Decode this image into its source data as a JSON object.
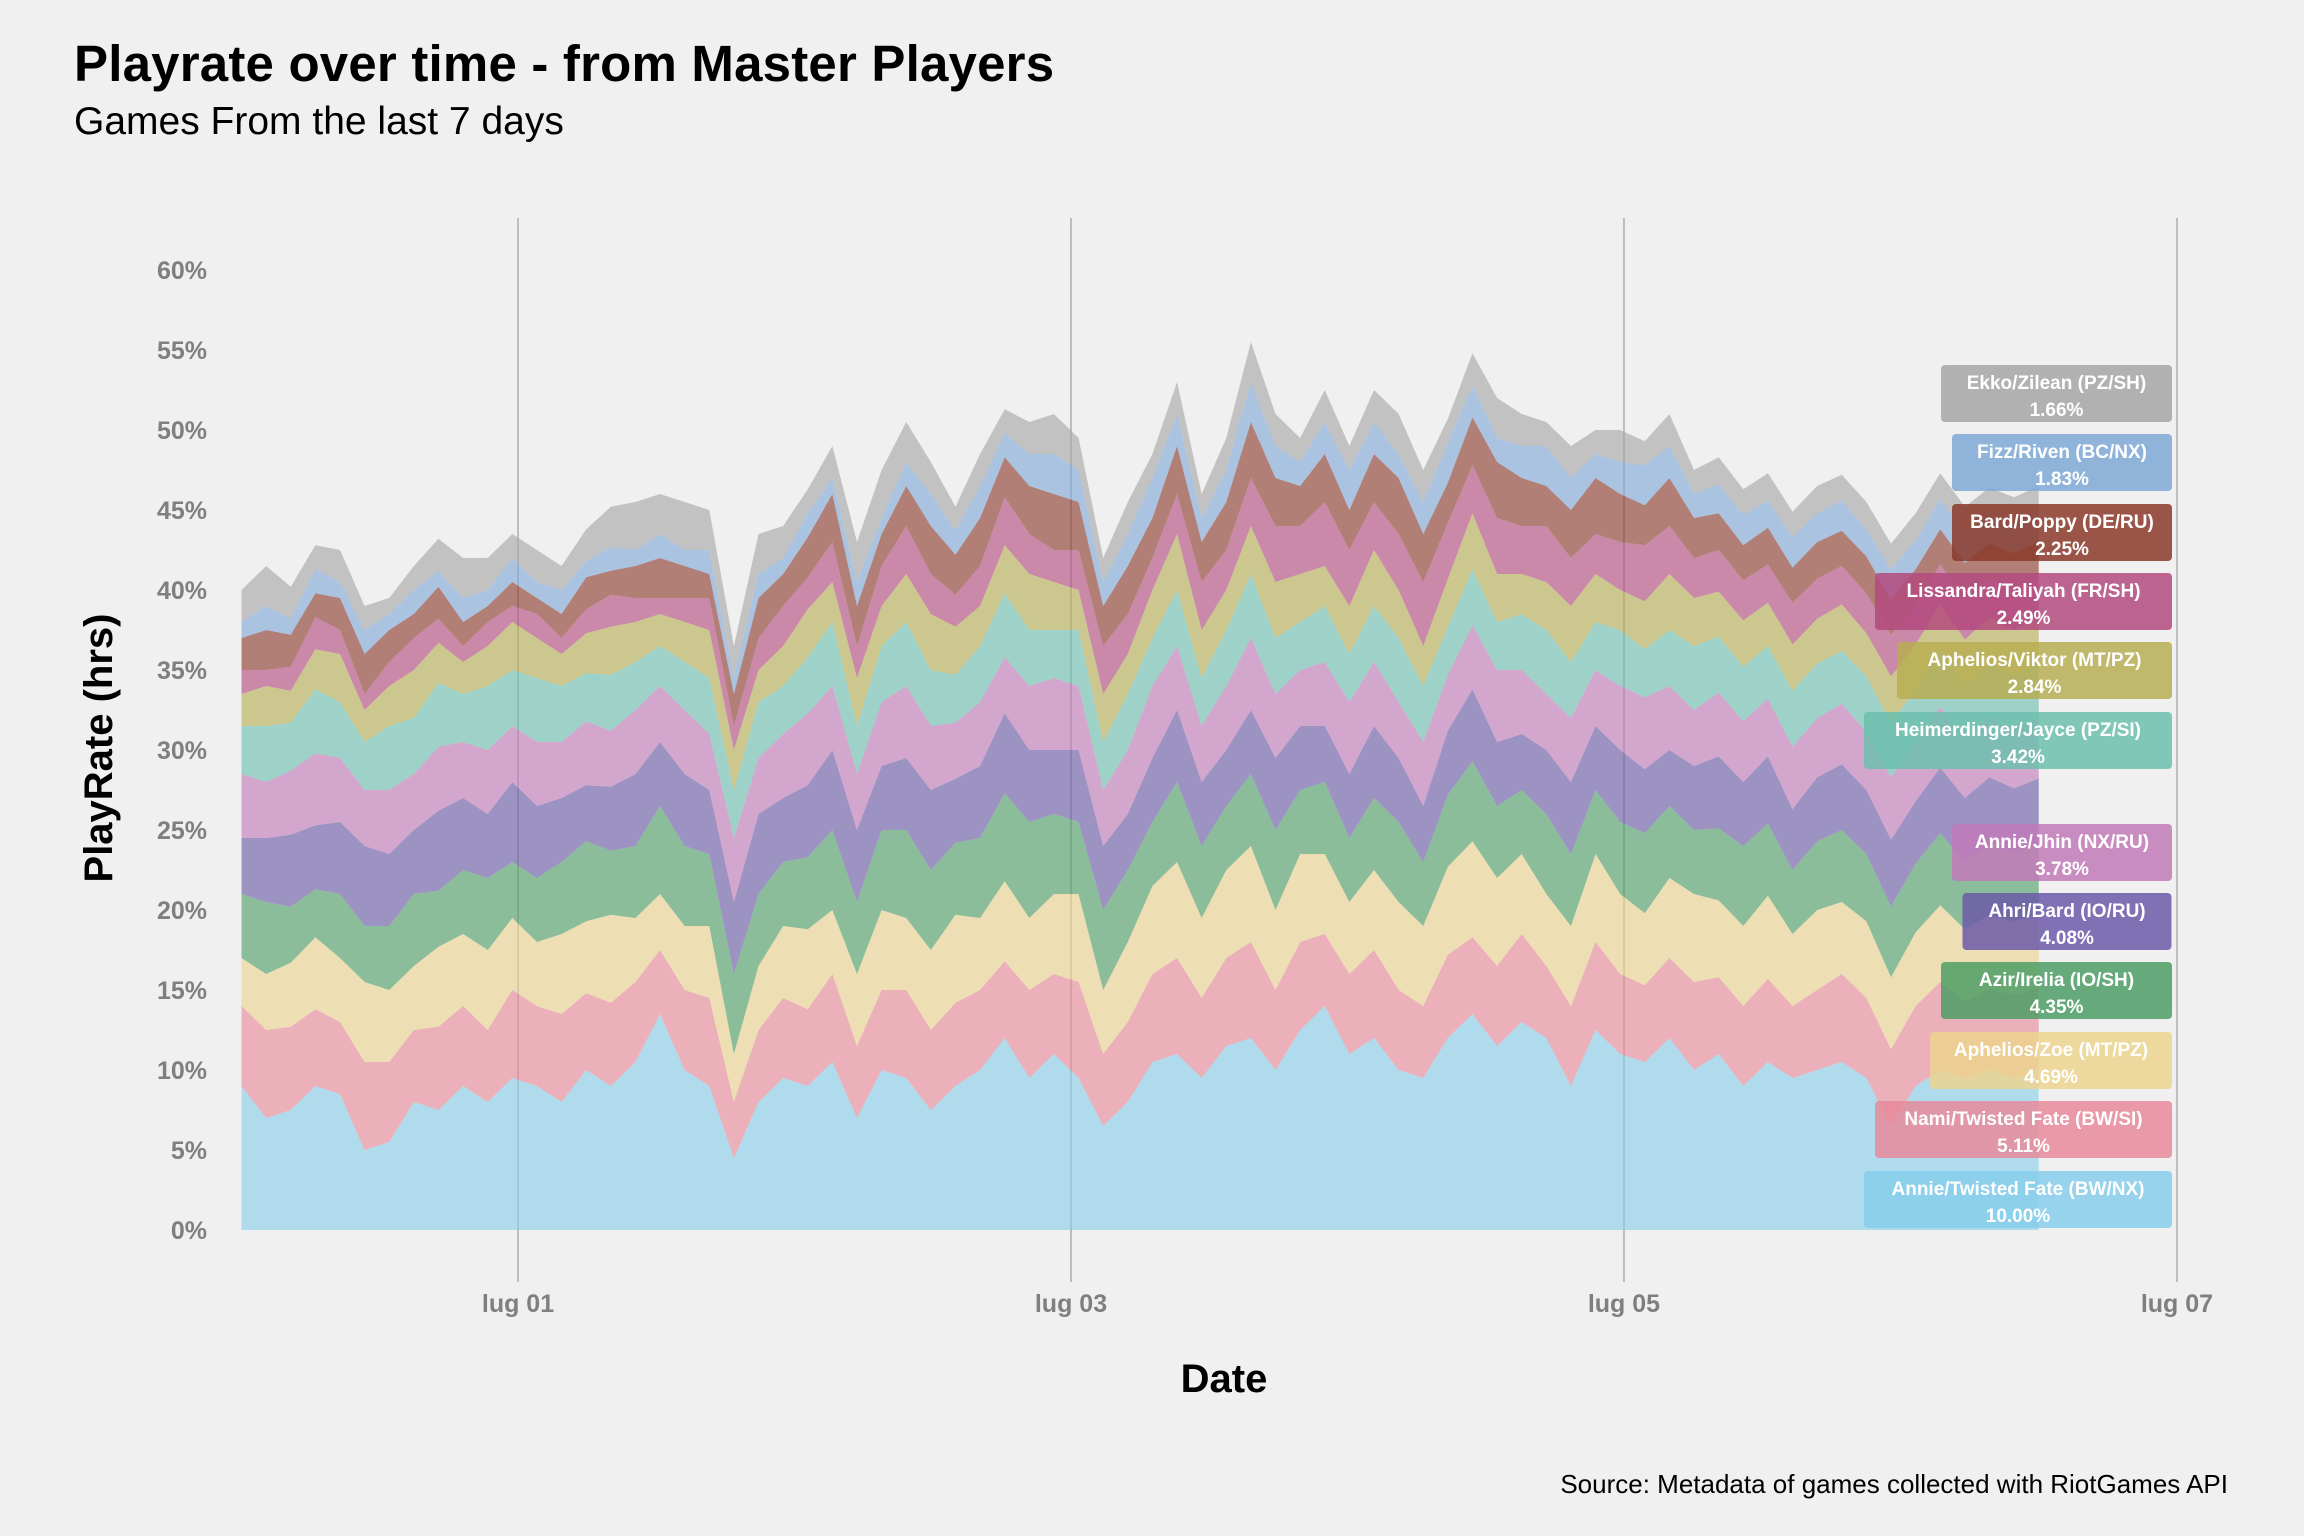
{
  "title": "Playrate over time - from Master Players",
  "subtitle": "Games From the last 7 days",
  "caption": "Source: Metadata of games collected with RiotGames API",
  "chart_data": {
    "type": "area",
    "stacked": true,
    "xlabel": "Date",
    "ylabel": "PlayRate (hrs)",
    "x_start": "2020-06-30T00:00",
    "x_end": "2020-07-06T12:00",
    "x_ticks": [
      {
        "date": "2020-07-01",
        "label": "lug 01"
      },
      {
        "date": "2020-07-03",
        "label": "lug 03"
      },
      {
        "date": "2020-07-05",
        "label": "lug 05"
      },
      {
        "date": "2020-07-07",
        "label": "lug 07"
      }
    ],
    "xlim": [
      "2020-06-29T23:00",
      "2020-07-07T02:00"
    ],
    "ylim": [
      0,
      62
    ],
    "y_ticks": [
      0,
      5,
      10,
      15,
      20,
      25,
      30,
      35,
      40,
      45,
      50,
      55,
      60
    ],
    "y_tick_labels": [
      "0%",
      "5%",
      "10%",
      "15%",
      "20%",
      "25%",
      "30%",
      "35%",
      "40%",
      "45%",
      "50%",
      "55%",
      "60%"
    ],
    "grid": "vertical-major",
    "legend_placement": "right-inline",
    "series": [
      {
        "name": "Annie/Twisted Fate (BW/NX)",
        "value_label": "10.00%",
        "color": "#87ceeb",
        "values": [
          9,
          7,
          7.5,
          9,
          8.5,
          5,
          5.5,
          8,
          7.5,
          9,
          8,
          9.5,
          9,
          8,
          10,
          9,
          10.5,
          13.5,
          10,
          9,
          4.5,
          8,
          9.5,
          9,
          10.5,
          7,
          10,
          9.5,
          7.5,
          9,
          10,
          12,
          9.5,
          11,
          9.5,
          6.5,
          8,
          10.5,
          11,
          9.5,
          11.5,
          12,
          10,
          12.5,
          14,
          11,
          12,
          10,
          9.5,
          12,
          13.5,
          11.5,
          13,
          12,
          9,
          12.5,
          11,
          10.5,
          12,
          10,
          11,
          9,
          10.5,
          9.5,
          10,
          10.5,
          9.5,
          6.5,
          9,
          10,
          9.5,
          10,
          9.5,
          10
        ]
      },
      {
        "name": "Nami/Twisted Fate (BW/SI)",
        "value_label": "5.11%",
        "color": "#e8899a",
        "values": [
          5,
          5.5,
          5.2,
          4.8,
          4.5,
          5.5,
          5,
          4.5,
          5.2,
          5,
          4.5,
          5.5,
          5,
          5.5,
          4.8,
          5.2,
          5,
          4,
          5,
          5.5,
          3.5,
          4.5,
          5,
          4.8,
          5.5,
          4.5,
          5,
          5.5,
          5,
          5.2,
          5,
          4.8,
          5.5,
          5,
          6,
          4.5,
          5,
          5.5,
          6,
          5,
          5.5,
          6,
          5,
          5.5,
          4.5,
          5,
          5.5,
          5,
          4.5,
          5.2,
          4.8,
          5,
          5.5,
          4.5,
          5,
          5.5,
          5,
          4.8,
          5,
          5.5,
          4.8,
          5,
          5.2,
          4.5,
          5,
          5.5,
          5,
          4.8,
          5,
          5.5,
          4.8,
          5,
          5.2,
          5.11
        ]
      },
      {
        "name": "Aphelios/Zoe (MT/PZ)",
        "value_label": "4.69%",
        "color": "#ecd48e",
        "values": [
          3,
          3.5,
          4,
          4.5,
          4,
          5,
          4.5,
          4,
          5,
          4.5,
          5,
          4.5,
          4,
          5,
          4.5,
          5.5,
          4,
          3.5,
          4,
          4.5,
          3,
          4,
          4.5,
          5,
          4,
          4.5,
          5,
          4.5,
          5,
          5.5,
          4.5,
          5,
          4.5,
          5,
          5.5,
          4,
          5,
          5.5,
          6,
          5,
          5.5,
          6,
          5,
          5.5,
          5,
          4.5,
          5,
          5.5,
          5,
          5.5,
          6,
          5.5,
          5,
          4.5,
          5,
          5.5,
          5,
          4.5,
          5,
          5.5,
          4.8,
          5,
          5.2,
          4.5,
          5,
          4.5,
          4.8,
          4.5,
          4.6,
          4.8,
          4.5,
          4.7,
          4.6,
          4.69
        ]
      },
      {
        "name": "Azir/Irelia (IO/SH)",
        "value_label": "4.35%",
        "color": "#4d9e66",
        "values": [
          4,
          4.5,
          3.5,
          3,
          4,
          3.5,
          4,
          4.5,
          3.5,
          4,
          4.5,
          3.5,
          4,
          4.5,
          5,
          4,
          4.5,
          5.5,
          5,
          4.5,
          5,
          4.5,
          4,
          4.5,
          5,
          4.5,
          5,
          5.5,
          5,
          4.5,
          5,
          5.5,
          6,
          5,
          4.5,
          5,
          4.5,
          4,
          5,
          4.5,
          4,
          4.5,
          5,
          4,
          4.5,
          4,
          4.5,
          5,
          4,
          4.5,
          5,
          4.5,
          4,
          5,
          4.5,
          4,
          4.5,
          5,
          4.5,
          4,
          4.5,
          5,
          4.5,
          4,
          4.3,
          4.5,
          4.2,
          4.4,
          4.3,
          4.5,
          4.2,
          4.4,
          4.3,
          4.35
        ]
      },
      {
        "name": "Ahri/Bard (IO/RU)",
        "value_label": "4.08%",
        "color": "#6b5aa8",
        "values": [
          3.5,
          4,
          4.5,
          4,
          4.5,
          5,
          4.5,
          4,
          5,
          4.5,
          4,
          5,
          4.5,
          4,
          3.5,
          4,
          4.5,
          4,
          4.5,
          4,
          4.5,
          5,
          4,
          4.5,
          5,
          4.5,
          4,
          4.5,
          5,
          4,
          4.5,
          5,
          4.5,
          4,
          4.5,
          4,
          3.5,
          4,
          4.5,
          4,
          3.5,
          4,
          4.5,
          4,
          3.5,
          4,
          4.5,
          4,
          3.5,
          4,
          4.5,
          4,
          3.5,
          4,
          4.5,
          4,
          4.5,
          4,
          3.5,
          4,
          4.5,
          4,
          4.2,
          3.8,
          4,
          4.1,
          4,
          4.2,
          3.9,
          4.1,
          4,
          4.2,
          4,
          4.08
        ]
      },
      {
        "name": "Annie/Jhin (NX/RU)",
        "value_label": "3.78%",
        "color": "#c27ab8",
        "values": [
          4,
          3.5,
          4,
          4.5,
          4,
          3.5,
          4,
          3.5,
          4,
          3.5,
          4,
          3.5,
          4,
          3.5,
          4,
          3.5,
          4,
          3.5,
          4,
          3.5,
          4,
          3.5,
          4,
          4.5,
          4,
          3.5,
          4,
          4.5,
          4,
          3.5,
          4,
          3.5,
          4,
          4.5,
          4,
          3.5,
          4,
          4.5,
          4,
          3.5,
          4,
          4.5,
          4,
          3.5,
          4,
          4.5,
          4,
          3.5,
          4,
          3.5,
          4,
          4.5,
          4,
          3.5,
          4,
          3.5,
          4,
          4.5,
          4,
          3.5,
          4,
          3.8,
          3.6,
          3.9,
          3.7,
          3.8,
          3.6,
          3.9,
          3.7,
          3.8,
          3.7,
          3.8,
          3.7,
          3.78
        ]
      },
      {
        "name": "Heimerdinger/Jayce (PZ/SI)",
        "value_label": "3.42%",
        "color": "#6cbfae",
        "values": [
          3,
          3.5,
          3,
          4,
          3.5,
          3,
          4,
          3.5,
          4,
          3,
          4,
          3.5,
          4,
          3.5,
          3,
          3.5,
          3,
          2.5,
          3,
          3.5,
          3,
          3.5,
          3,
          3.5,
          4,
          3,
          3.5,
          4,
          3.5,
          3,
          3.5,
          4,
          3.5,
          3,
          3.5,
          3,
          3.5,
          3,
          3.5,
          3,
          3.5,
          4,
          3.5,
          3,
          3.5,
          3,
          3.5,
          4,
          3.5,
          3,
          3.5,
          3,
          3.5,
          4,
          3.5,
          3,
          3.5,
          3,
          3.5,
          4,
          3.5,
          3.4,
          3.3,
          3.5,
          3.4,
          3.3,
          3.5,
          3.4,
          3.3,
          3.5,
          3.4,
          3.3,
          3.4,
          3.42
        ]
      },
      {
        "name": "Aphelios/Viktor (MT/PZ)",
        "value_label": "2.84%",
        "color": "#b7ae52",
        "values": [
          2,
          2.5,
          2,
          2.5,
          3,
          2,
          2.5,
          3,
          2.5,
          2,
          2.5,
          3,
          2.5,
          2,
          2.5,
          3,
          2.5,
          2,
          2.5,
          3,
          2.5,
          2,
          2.5,
          3,
          2.5,
          3,
          2.5,
          3,
          3.5,
          3,
          2.5,
          3,
          3.5,
          3,
          2.5,
          3,
          2.5,
          3,
          3.5,
          3,
          2.5,
          3,
          3.5,
          3,
          2.5,
          3,
          3.5,
          3,
          2.5,
          3,
          3.5,
          3,
          2.5,
          3,
          3.5,
          3,
          2.5,
          3,
          3.5,
          3,
          2.8,
          2.9,
          2.7,
          2.9,
          2.8,
          2.9,
          2.7,
          2.9,
          2.8,
          2.9,
          2.8,
          2.9,
          2.8,
          2.84
        ]
      },
      {
        "name": "Lissandra/Taliyah (FR/SH)",
        "value_label": "2.49%",
        "color": "#b44a7e",
        "values": [
          1.5,
          1,
          1.5,
          2,
          1.5,
          1,
          1.5,
          2,
          1.5,
          1,
          1.5,
          1,
          1.5,
          1,
          1.5,
          2,
          1.5,
          1,
          1.5,
          2,
          1.5,
          2,
          2.5,
          2,
          2.5,
          2,
          2.5,
          3,
          2.5,
          2,
          2.5,
          3,
          2.5,
          2,
          2.5,
          3,
          2.5,
          2,
          2.5,
          3,
          2.5,
          3,
          3.5,
          3,
          4,
          3.5,
          3,
          3.5,
          4,
          3.5,
          3,
          3.5,
          3,
          3.5,
          3,
          2.5,
          3,
          3.5,
          3,
          2.5,
          2.6,
          2.5,
          2.4,
          2.6,
          2.5,
          2.4,
          2.5,
          2.6,
          2.4,
          2.5,
          2.5,
          2.4,
          2.5,
          2.49
        ]
      },
      {
        "name": "Bard/Poppy (DE/RU)",
        "value_label": "2.25%",
        "color": "#8b3a2a",
        "values": [
          2,
          2.5,
          2,
          1.5,
          2,
          2.5,
          2,
          1.5,
          2,
          1.5,
          1,
          1.5,
          1,
          1.5,
          2,
          1.5,
          2,
          2.5,
          2,
          1.5,
          2,
          2.5,
          2,
          2.5,
          3,
          2.5,
          2,
          2.5,
          3,
          2.5,
          3,
          2.5,
          3,
          3.5,
          3,
          2.5,
          3,
          2.5,
          3,
          2.5,
          3,
          3.5,
          3,
          2.5,
          3,
          2.5,
          3,
          3.5,
          3,
          2.5,
          3,
          3.5,
          3,
          2.5,
          3,
          3.5,
          3,
          2.5,
          3,
          2.5,
          2.3,
          2.2,
          2.3,
          2.2,
          2.3,
          2.2,
          2.3,
          2.2,
          2.3,
          2.2,
          2.3,
          2.2,
          2.3,
          2.25
        ]
      },
      {
        "name": "Fizz/Riven (BC/NX)",
        "value_label": "1.83%",
        "color": "#7fa8d6",
        "values": [
          1,
          1.5,
          1,
          1.5,
          1,
          1.5,
          1,
          1.5,
          1,
          1.5,
          1,
          1.5,
          1,
          1.5,
          1,
          1.5,
          1,
          1.5,
          1,
          1.5,
          1,
          1.5,
          1,
          1.5,
          1,
          1.5,
          1,
          1.5,
          2,
          1.5,
          2,
          1.5,
          2,
          2.5,
          2,
          1.5,
          2,
          2.5,
          2,
          1.5,
          2,
          2.5,
          2,
          1.5,
          2,
          2.5,
          2,
          1.5,
          2,
          2.5,
          2,
          1.5,
          2,
          2.5,
          2,
          1.5,
          2,
          2.5,
          2,
          1.5,
          1.8,
          1.9,
          1.7,
          1.9,
          1.8,
          1.9,
          1.7,
          1.9,
          1.8,
          1.9,
          1.8,
          1.9,
          1.8,
          1.83
        ]
      },
      {
        "name": "Ekko/Zilean (PZ/SH)",
        "value_label": "1.66%",
        "color": "#a6a6a6",
        "values": [
          2,
          2.5,
          2,
          1.5,
          2,
          1.5,
          1,
          1.5,
          2,
          2.5,
          2,
          1.5,
          2,
          1.5,
          2,
          2.5,
          3,
          2.5,
          3,
          2.5,
          2,
          2.5,
          2,
          1.5,
          2,
          2.5,
          3,
          2.5,
          2,
          1.5,
          2,
          1.5,
          2,
          2.5,
          2,
          1.5,
          2,
          1.5,
          2,
          1.5,
          2,
          2.5,
          2,
          1.5,
          2,
          1.5,
          2,
          2.5,
          2,
          1.5,
          2,
          2.5,
          2,
          1.5,
          2,
          1.5,
          2,
          1.5,
          2,
          1.5,
          1.7,
          1.6,
          1.7,
          1.6,
          1.7,
          1.6,
          1.7,
          1.6,
          1.7,
          1.6,
          1.7,
          1.6,
          1.7,
          1.66
        ]
      }
    ]
  }
}
